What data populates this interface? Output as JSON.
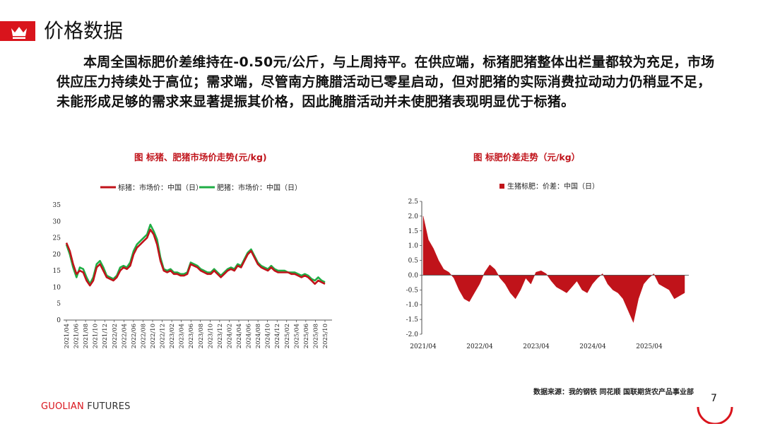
{
  "page": {
    "title": "价格数据",
    "paragraph": "本周全国标肥价差维持在-0.50元/公斤，与上周持平。在供应端，标猪肥猪整体出栏量都较为充足，市场供应压力持续处于高位；需求端，尽管南方腌腊活动已零星启动，但对肥猪的实际消费拉动动力仍稍显不足，未能形成足够的需求来显著提振其价格，因此腌腊活动并未使肥猪表现明显优于标猪。",
    "source": "数据来源：我的钢铁  同花顺  国联期货农产品事业部",
    "logo_main": "GUOLIAN",
    "logo_sub": " FUTURES",
    "page_number": "7",
    "accent_color": "#d9141c"
  },
  "chart_data": [
    {
      "type": "line",
      "title": "图   标猪、肥猪市场价走势(元/kg)",
      "ylim": [
        0,
        35
      ],
      "yticks": [
        0,
        5,
        10,
        15,
        20,
        25,
        30,
        35
      ],
      "x_ticks": [
        "2021/04",
        "2021/06",
        "2021/08",
        "2021/10",
        "2021/12",
        "2022/02",
        "2022/04",
        "2022/06",
        "2022/08",
        "2022/10",
        "2022/12",
        "2023/02",
        "2023/04",
        "2023/06",
        "2023/08",
        "2023/10",
        "2023/12",
        "2024/02",
        "2024/04",
        "2024/06",
        "2024/08",
        "2024/10",
        "2024/12",
        "2025/02",
        "2025/04",
        "2025/06",
        "2025/08",
        "2025/10"
      ],
      "legend_position": "top",
      "series": [
        {
          "name": "标猪：市场价：中国（日）",
          "color": "#c0131a",
          "values": [
            23.5,
            21,
            17,
            14,
            15,
            14.5,
            12,
            10.5,
            12,
            16,
            17,
            15,
            13,
            12.5,
            12,
            13,
            15,
            16,
            15.5,
            16.5,
            20,
            22,
            23,
            24,
            25,
            27.5,
            26,
            23,
            18,
            15,
            14.5,
            15,
            14,
            14,
            13.5,
            13.5,
            14,
            17,
            16.5,
            16,
            15,
            14.5,
            14,
            14,
            15,
            14,
            13,
            14,
            15,
            15.5,
            15,
            16.5,
            16,
            18,
            20,
            21,
            19,
            17,
            16,
            15.5,
            15,
            16,
            15,
            14.5,
            14.5,
            14.5,
            14.5,
            14,
            14,
            13.5,
            13,
            13.5,
            13,
            12,
            11,
            12,
            11.5,
            11
          ]
        },
        {
          "name": "肥猪：市场价：中国（日）",
          "color": "#1fae45",
          "values": [
            23,
            20,
            16,
            13,
            16,
            15.5,
            13,
            11,
            13,
            17,
            18,
            16,
            13.5,
            13,
            12.5,
            13.5,
            16,
            16.5,
            16,
            17.5,
            21,
            23,
            24,
            25,
            26,
            29,
            27,
            24.5,
            19,
            15.5,
            15,
            15.5,
            14.5,
            14.5,
            14,
            14,
            14.5,
            17.5,
            17,
            16.5,
            15.5,
            15,
            14.5,
            14.5,
            15.5,
            14.5,
            13.5,
            14.5,
            15.5,
            16,
            15.5,
            17,
            16.5,
            18.5,
            20.5,
            21.5,
            19.5,
            17.5,
            16.5,
            16,
            15.5,
            16.5,
            15.5,
            15,
            15,
            15,
            14.5,
            14.5,
            14.5,
            14,
            13.5,
            14,
            13.5,
            12.5,
            12,
            13,
            12,
            11.5
          ]
        }
      ]
    },
    {
      "type": "area",
      "title": "图   标肥价差走势（元/kg）",
      "ylim": [
        -2.0,
        2.5
      ],
      "yticks": [
        "2.5",
        "2.0",
        "1.5",
        "1.0",
        "0.5",
        "0.0",
        "-0.5",
        "-1.0",
        "-1.5",
        "-2.0"
      ],
      "x_ticks": [
        "2021/04",
        "2022/04",
        "2023/04",
        "2024/04",
        "2025/04"
      ],
      "legend_position": "top",
      "series": [
        {
          "name": "生猪标肥：价差：中国（日）",
          "color": "#c0131a",
          "values": [
            2.0,
            1.2,
            0.9,
            0.5,
            0.2,
            0.1,
            -0.1,
            -0.5,
            -0.8,
            -0.9,
            -0.6,
            -0.3,
            0.1,
            0.35,
            0.2,
            -0.1,
            -0.3,
            -0.6,
            -0.8,
            -0.5,
            -0.1,
            -0.3,
            0.1,
            0.15,
            0.05,
            -0.2,
            -0.4,
            -0.5,
            -0.6,
            -0.4,
            -0.2,
            -0.5,
            -0.6,
            -0.3,
            -0.1,
            0.05,
            -0.3,
            -0.5,
            -0.6,
            -0.8,
            -1.2,
            -1.6,
            -0.8,
            -0.3,
            -0.1,
            0.05,
            -0.3,
            -0.4,
            -0.5,
            -0.8,
            -0.7,
            -0.6
          ]
        }
      ]
    }
  ]
}
